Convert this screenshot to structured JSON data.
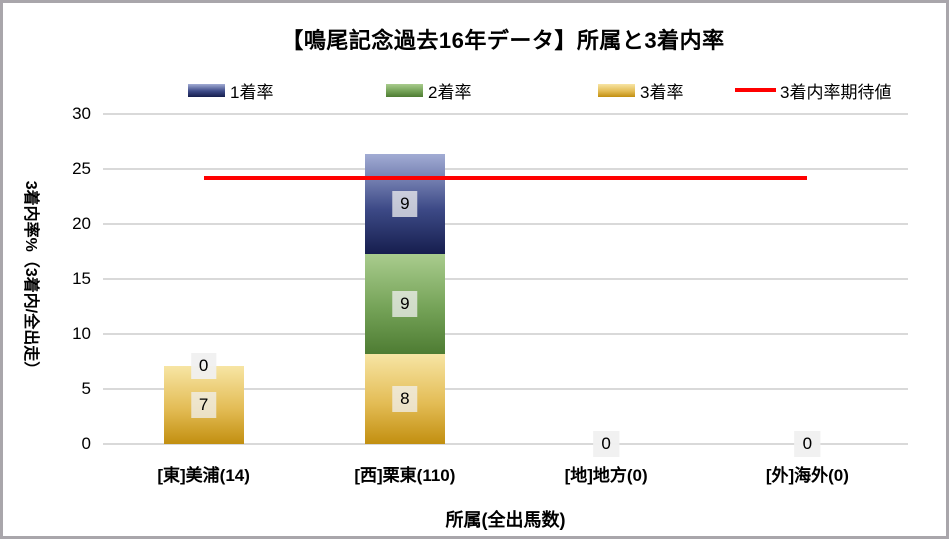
{
  "chart_data": {
    "type": "stacked-bar-with-line",
    "title": "【鳴尾記念過去16年データ】所属と3着内率",
    "xlabel": "所属(全出馬数)",
    "ylabel": "3着内率%（3着内/全出走）",
    "categories": [
      "[東]美浦(14)",
      "[西]栗東(110)",
      "[地]地方(0)",
      "[外]海外(0)"
    ],
    "ylim": [
      0,
      30
    ],
    "yticks": [
      0,
      5,
      10,
      15,
      20,
      25,
      30
    ],
    "grid": true,
    "legend_position": "top",
    "series": [
      {
        "name": "1着率",
        "values": [
          0,
          9.1,
          0,
          0
        ],
        "labels": [
          "0",
          "9",
          "0",
          "0"
        ],
        "color_top": "#a2acd4",
        "color_mid": "#3d4a87",
        "color_bottom": "#161e4e"
      },
      {
        "name": "2着率",
        "values": [
          0,
          9.1,
          0,
          0
        ],
        "labels": [
          "0",
          "9",
          "0",
          "0"
        ],
        "color_top": "#a9cc8e",
        "color_mid": "#74a257",
        "color_bottom": "#4e7c33"
      },
      {
        "name": "3着率",
        "values": [
          7.1,
          8.2,
          0,
          0
        ],
        "labels": [
          "7",
          "8",
          "0",
          "0"
        ],
        "color_top": "#f7e5a4",
        "color_mid": "#e3bc55",
        "color_bottom": "#c28f10"
      }
    ],
    "line_series": {
      "name": "3着内率期待値",
      "value": 24.2,
      "color": "#ff0000"
    },
    "colors": {
      "gridline": "#d9d9d9",
      "axis_text": "#000000",
      "label_bg": "#f0f0f0"
    }
  }
}
